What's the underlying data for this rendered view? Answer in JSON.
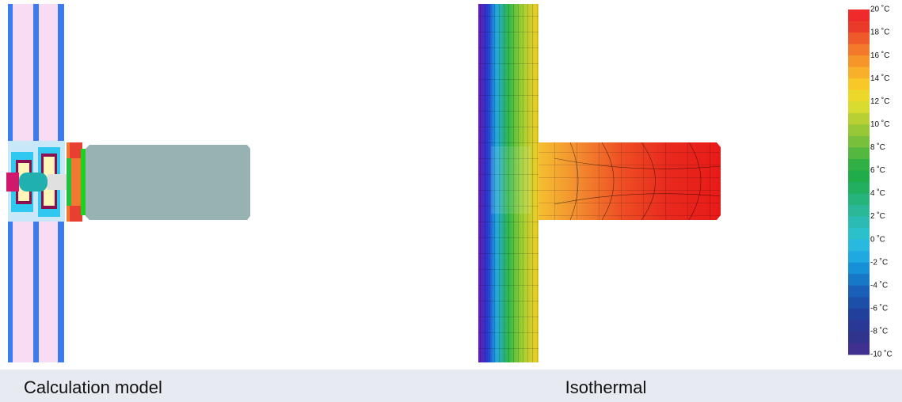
{
  "captions": {
    "left": "Calculation model",
    "right": "Isothermal"
  },
  "legend": {
    "labels": [
      "20 ˚C",
      "18 ˚C",
      "16 ˚C",
      "14 ˚C",
      "12 ˚C",
      "10 ˚C",
      "8 ˚C",
      "6 ˚C",
      "4 ˚C",
      "2 ˚C",
      "0 ˚C",
      "-2 ˚C",
      "-4 ˚C",
      "-6 ˚C",
      "-8 ˚C",
      "-10 ˚C"
    ],
    "colors": [
      "#ee2a2a",
      "#ea3a2a",
      "#ee5a2a",
      "#f27a2a",
      "#f5952a",
      "#f8b02a",
      "#f8c828",
      "#ecd82a",
      "#d8dc30",
      "#b8d034",
      "#98c838",
      "#78c03c",
      "#54b840",
      "#30b044",
      "#20ac48",
      "#22b060",
      "#26b47c",
      "#2ab898",
      "#2cbab4",
      "#2cc0cc",
      "#28b8e0",
      "#20a8e0",
      "#1890d8",
      "#1878c8",
      "#1a60b8",
      "#1c50a8",
      "#20409c",
      "#283894",
      "#30348c",
      "#403090"
    ]
  }
}
